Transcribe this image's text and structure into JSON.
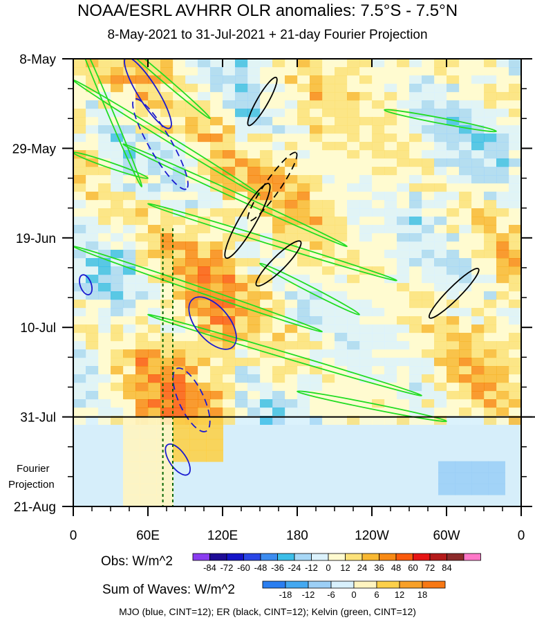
{
  "chart_data": {
    "type": "heatmap",
    "title": "NOAA/ESRL AVHRR OLR anomalies: 7.5°S - 7.5°N",
    "subtitle": "8-May-2021 to 31-Jul-2021 + 21-day Fourier Projection",
    "x_ticks": [
      "0",
      "60E",
      "120E",
      "180",
      "120W",
      "60W",
      "0"
    ],
    "x_values_deg": [
      0,
      60,
      120,
      180,
      240,
      300,
      360
    ],
    "y_ticks": [
      "8-May",
      "29-May",
      "19-Jun",
      "10-Jul",
      "31-Jul",
      "21-Aug"
    ],
    "y_values_day": [
      0,
      21,
      42,
      63,
      84,
      105
    ],
    "observed_end": "31-Jul",
    "projection_label_line1": "Fourier",
    "projection_label_line2": "Projection",
    "dashed_meridians_deg": [
      72,
      80
    ],
    "legend_obs": {
      "label": "Obs: W/m^2",
      "levels": [
        "-84",
        "-72",
        "-60",
        "-48",
        "-36",
        "-24",
        "-12",
        "0",
        "12",
        "24",
        "36",
        "48",
        "60",
        "72",
        "84"
      ],
      "colors": [
        "#8a3cf0",
        "#1e0c96",
        "#1414c8",
        "#2a46e6",
        "#3c8cf0",
        "#3cbee8",
        "#a8d8f6",
        "#dcf2fc",
        "#fffad0",
        "#fce27a",
        "#f8b832",
        "#f88a14",
        "#fa5a0c",
        "#e61414",
        "#b41a1a",
        "#8c2a2a",
        "#ff78c8"
      ]
    },
    "legend_waves": {
      "label": "Sum of Waves: W/m^2",
      "levels": [
        "-18",
        "-12",
        "-6",
        "0",
        "6",
        "12",
        "18"
      ],
      "colors": [
        "#2a7ef0",
        "#44a8f0",
        "#9ccff6",
        "#d8f0fc",
        "#fff4c0",
        "#fcd04a",
        "#f8a028",
        "#f87814"
      ]
    },
    "footer": "MJO (blue, CINT=12); ER (black, CINT=12); Kelvin (green, CINT=12)",
    "colors": {
      "mjo": "#1a1ad0",
      "er": "#000000",
      "kelvin": "#22dd22",
      "projection_bg": "#d6eefa",
      "meridian": "#006400"
    }
  }
}
